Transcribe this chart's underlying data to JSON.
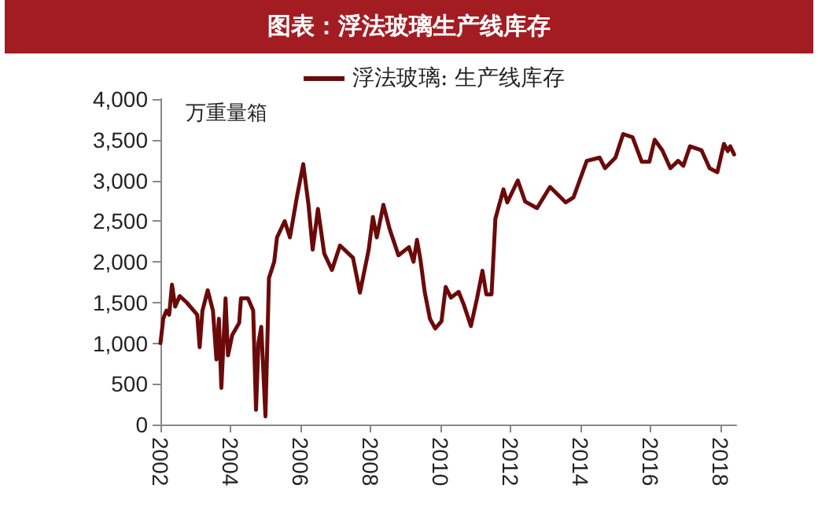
{
  "chart_data": {
    "type": "line",
    "title": "图表：浮法玻璃生产线库存",
    "ylabel": "万重量箱",
    "xlim": [
      2002,
      2018.45
    ],
    "xticks": [
      2002,
      2004,
      2006,
      2008,
      2010,
      2012,
      2014,
      2016,
      2018
    ],
    "ylim": [
      0,
      4000
    ],
    "yticks": [
      0,
      500,
      {
        "value": 1000,
        "label": "1,000"
      },
      {
        "value": 1500,
        "label": "1,500"
      },
      {
        "value": 2000,
        "label": "2,000"
      },
      {
        "value": 2500,
        "label": "2,500"
      },
      {
        "value": 3000,
        "label": "3,000"
      },
      {
        "value": 3500,
        "label": "3,500"
      },
      {
        "value": 4000,
        "label": "4,000"
      }
    ],
    "grid": false,
    "legend": "top",
    "marker": "none",
    "line_style": "solid",
    "series": [
      {
        "name": "浮法玻璃: 生产线库存",
        "color": "#6b0a0a",
        "x": [
          2002.0,
          2002.08,
          2002.17,
          2002.25,
          2002.33,
          2002.42,
          2002.55,
          2002.75,
          2002.95,
          2003.05,
          2003.12,
          2003.2,
          2003.35,
          2003.5,
          2003.6,
          2003.67,
          2003.74,
          2003.8,
          2003.86,
          2003.93,
          2004.05,
          2004.25,
          2004.3,
          2004.5,
          2004.65,
          2004.73,
          2004.8,
          2004.88,
          2005.0,
          2005.1,
          2005.25,
          2005.33,
          2005.55,
          2005.7,
          2005.9,
          2006.08,
          2006.23,
          2006.35,
          2006.5,
          2006.68,
          2006.9,
          2007.13,
          2007.5,
          2007.7,
          2007.95,
          2008.07,
          2008.18,
          2008.37,
          2008.55,
          2008.8,
          2009.1,
          2009.23,
          2009.33,
          2009.43,
          2009.55,
          2009.7,
          2009.85,
          2010.03,
          2010.15,
          2010.3,
          2010.52,
          2010.67,
          2010.87,
          2011.05,
          2011.2,
          2011.31,
          2011.46,
          2011.57,
          2011.8,
          2011.91,
          2012.21,
          2012.42,
          2012.76,
          2013.13,
          2013.58,
          2013.8,
          2014.18,
          2014.55,
          2014.7,
          2015.0,
          2015.22,
          2015.49,
          2015.75,
          2015.97,
          2016.12,
          2016.34,
          2016.57,
          2016.79,
          2016.94,
          2017.13,
          2017.46,
          2017.69,
          2017.91,
          2018.1,
          2018.21,
          2018.28,
          2018.39
        ],
        "values": [
          1000,
          1300,
          1400,
          1350,
          1720,
          1450,
          1580,
          1500,
          1400,
          1350,
          950,
          1400,
          1650,
          1400,
          800,
          1300,
          450,
          1000,
          1550,
          850,
          1100,
          1250,
          1550,
          1550,
          1400,
          180,
          1000,
          1200,
          100,
          1800,
          2000,
          2300,
          2500,
          2300,
          2800,
          3200,
          2700,
          2150,
          2650,
          2100,
          1900,
          2200,
          2050,
          1620,
          2150,
          2550,
          2300,
          2700,
          2400,
          2080,
          2180,
          2000,
          2270,
          2020,
          1630,
          1300,
          1180,
          1270,
          1690,
          1560,
          1630,
          1470,
          1210,
          1560,
          1890,
          1600,
          1600,
          2530,
          2890,
          2730,
          3000,
          2740,
          2660,
          2920,
          2730,
          2790,
          3240,
          3280,
          3150,
          3280,
          3570,
          3530,
          3230,
          3230,
          3500,
          3370,
          3150,
          3240,
          3180,
          3420,
          3370,
          3150,
          3100,
          3450,
          3360,
          3420,
          3320
        ]
      }
    ]
  }
}
